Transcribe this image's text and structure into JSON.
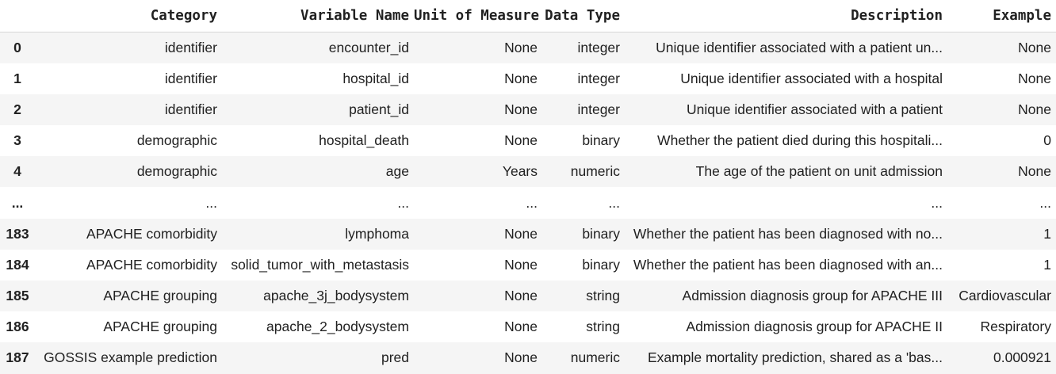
{
  "table": {
    "columns": [
      "Category",
      "Variable Name",
      "Unit of Measure",
      "Data Type",
      "Description",
      "Example"
    ],
    "rows": [
      {
        "index": "0",
        "cells": [
          "identifier",
          "encounter_id",
          "None",
          "integer",
          "Unique identifier associated with a patient un...",
          "None"
        ]
      },
      {
        "index": "1",
        "cells": [
          "identifier",
          "hospital_id",
          "None",
          "integer",
          "Unique identifier associated with a hospital",
          "None"
        ]
      },
      {
        "index": "2",
        "cells": [
          "identifier",
          "patient_id",
          "None",
          "integer",
          "Unique identifier associated with a patient",
          "None"
        ]
      },
      {
        "index": "3",
        "cells": [
          "demographic",
          "hospital_death",
          "None",
          "binary",
          "Whether the patient died during this hospitali...",
          "0"
        ]
      },
      {
        "index": "4",
        "cells": [
          "demographic",
          "age",
          "Years",
          "numeric",
          "The age of the patient on unit admission",
          "None"
        ]
      },
      {
        "index": "...",
        "cells": [
          "...",
          "...",
          "...",
          "...",
          "...",
          "..."
        ]
      },
      {
        "index": "183",
        "cells": [
          "APACHE comorbidity",
          "lymphoma",
          "None",
          "binary",
          "Whether the patient has been diagnosed with no...",
          "1"
        ]
      },
      {
        "index": "184",
        "cells": [
          "APACHE comorbidity",
          "solid_tumor_with_metastasis",
          "None",
          "binary",
          "Whether the patient has been diagnosed with an...",
          "1"
        ]
      },
      {
        "index": "185",
        "cells": [
          "APACHE grouping",
          "apache_3j_bodysystem",
          "None",
          "string",
          "Admission diagnosis group for APACHE III",
          "Cardiovascular"
        ]
      },
      {
        "index": "186",
        "cells": [
          "APACHE grouping",
          "apache_2_bodysystem",
          "None",
          "string",
          "Admission diagnosis group for APACHE II",
          "Respiratory"
        ]
      },
      {
        "index": "187",
        "cells": [
          "GOSSIS example prediction",
          "pred",
          "None",
          "numeric",
          "Example mortality prediction, shared as a 'bas...",
          "0.000921"
        ]
      }
    ]
  }
}
